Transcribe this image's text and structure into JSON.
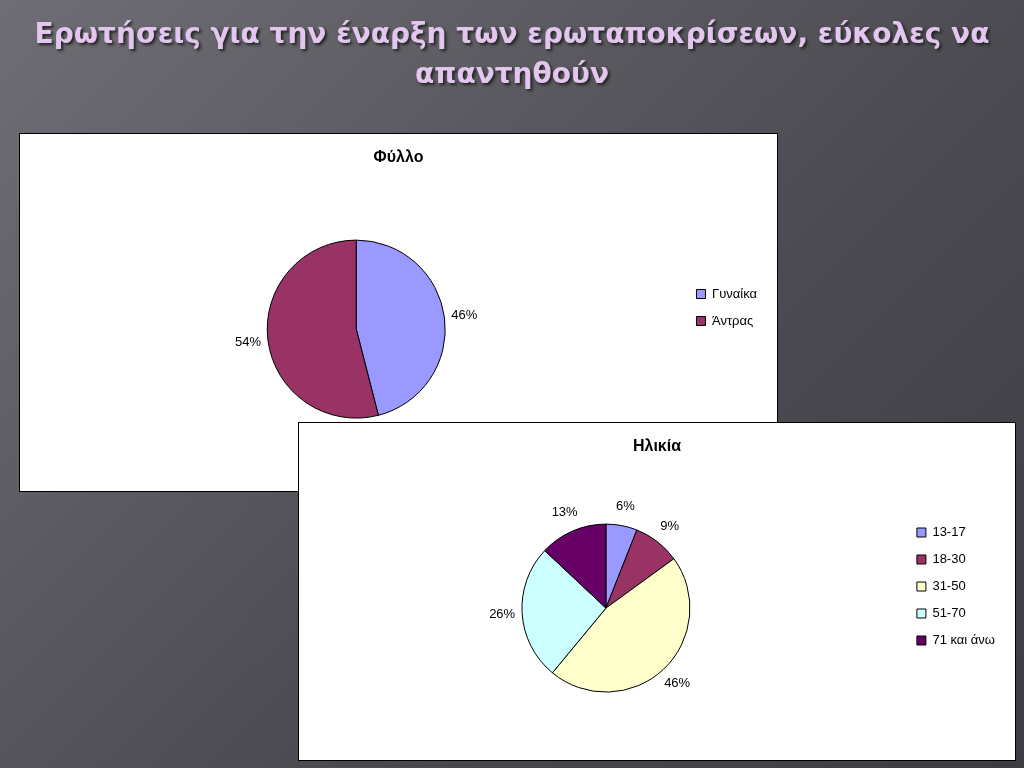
{
  "chart_data": [
    {
      "type": "pie",
      "title": "Φύλλο",
      "annotations": [
        "Ερωτήσεις για την έναρξη των ερωταποκρίσεων, εύκολες να απαντηθούν"
      ],
      "categories": [
        "Γυναίκα",
        "Άντρας"
      ],
      "values": [
        46,
        54
      ],
      "value_labels": [
        "46%",
        "54%"
      ],
      "colors": [
        "#9999ff",
        "#993366"
      ],
      "legend": "right"
    },
    {
      "type": "pie",
      "title": "Ηλικία",
      "categories": [
        "13-17",
        "18-30",
        "31-50",
        "51-70",
        "71 και άνω"
      ],
      "values": [
        6,
        9,
        46,
        26,
        13
      ],
      "value_labels": [
        "6%",
        "9%",
        "46%",
        "26%",
        "13%"
      ],
      "colors": [
        "#9999ff",
        "#993366",
        "#ffffcc",
        "#ccffff",
        "#660066"
      ],
      "legend": "right"
    }
  ]
}
